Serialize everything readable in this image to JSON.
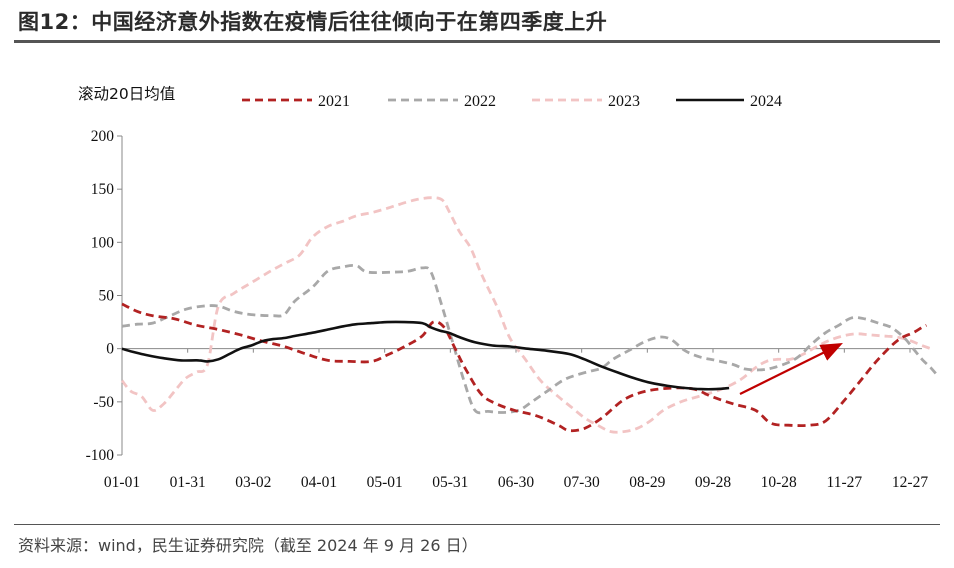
{
  "header": {
    "title": "图12：中国经济意外指数在疫情后往往倾向于在第四季度上升"
  },
  "footer": {
    "source": "资料来源：wind，民生证券研究院（截至 2024 年 9 月 26 日）"
  },
  "chart_data": {
    "type": "line",
    "unit_label": "滚动20日均值",
    "x_tick_labels": [
      "01-01",
      "01-31",
      "03-02",
      "04-01",
      "05-01",
      "05-31",
      "06-30",
      "07-30",
      "08-29",
      "09-28",
      "10-28",
      "11-27",
      "12-27"
    ],
    "x_domain_days": [
      1,
      366
    ],
    "ylim": [
      -100,
      200
    ],
    "y_ticks": [
      -100,
      -50,
      0,
      50,
      100,
      150,
      200
    ],
    "legend_position": "top",
    "annotation": "red arrow indicating Q4 rise",
    "series": [
      {
        "name": "2021",
        "color": "#b22222",
        "dash": "dashed",
        "points": [
          [
            1,
            42
          ],
          [
            8,
            35
          ],
          [
            15,
            31
          ],
          [
            25,
            28
          ],
          [
            35,
            22
          ],
          [
            45,
            18
          ],
          [
            55,
            13
          ],
          [
            65,
            7
          ],
          [
            75,
            2
          ],
          [
            85,
            -5
          ],
          [
            95,
            -11
          ],
          [
            105,
            -12
          ],
          [
            115,
            -12
          ],
          [
            122,
            -6
          ],
          [
            130,
            2
          ],
          [
            138,
            12
          ],
          [
            143,
            25
          ],
          [
            148,
            20
          ],
          [
            153,
            0
          ],
          [
            158,
            -20
          ],
          [
            165,
            -43
          ],
          [
            172,
            -52
          ],
          [
            180,
            -58
          ],
          [
            190,
            -63
          ],
          [
            200,
            -72
          ],
          [
            205,
            -77
          ],
          [
            212,
            -75
          ],
          [
            220,
            -65
          ],
          [
            230,
            -48
          ],
          [
            240,
            -40
          ],
          [
            252,
            -37
          ],
          [
            262,
            -38
          ],
          [
            270,
            -45
          ],
          [
            280,
            -52
          ],
          [
            290,
            -58
          ],
          [
            297,
            -70
          ],
          [
            305,
            -72
          ],
          [
            315,
            -72
          ],
          [
            322,
            -68
          ],
          [
            330,
            -50
          ],
          [
            338,
            -30
          ],
          [
            346,
            -10
          ],
          [
            355,
            8
          ],
          [
            362,
            15
          ],
          [
            366,
            20
          ],
          [
            368,
            22
          ]
        ]
      },
      {
        "name": "2022",
        "color": "#a8a8a8",
        "dash": "dashed",
        "points": [
          [
            1,
            21
          ],
          [
            8,
            23
          ],
          [
            15,
            24
          ],
          [
            22,
            30
          ],
          [
            30,
            37
          ],
          [
            38,
            40
          ],
          [
            45,
            40
          ],
          [
            52,
            35
          ],
          [
            60,
            32
          ],
          [
            70,
            31
          ],
          [
            75,
            32
          ],
          [
            80,
            45
          ],
          [
            88,
            58
          ],
          [
            95,
            73
          ],
          [
            102,
            77
          ],
          [
            108,
            78
          ],
          [
            113,
            72
          ],
          [
            125,
            72
          ],
          [
            132,
            73
          ],
          [
            138,
            76
          ],
          [
            142,
            72
          ],
          [
            147,
            40
          ],
          [
            152,
            5
          ],
          [
            157,
            -30
          ],
          [
            162,
            -58
          ],
          [
            168,
            -59
          ],
          [
            175,
            -60
          ],
          [
            182,
            -58
          ],
          [
            188,
            -50
          ],
          [
            195,
            -40
          ],
          [
            202,
            -30
          ],
          [
            208,
            -25
          ],
          [
            215,
            -21
          ],
          [
            220,
            -18
          ],
          [
            225,
            -10
          ],
          [
            232,
            -2
          ],
          [
            240,
            7
          ],
          [
            247,
            11
          ],
          [
            252,
            8
          ],
          [
            258,
            -2
          ],
          [
            265,
            -8
          ],
          [
            272,
            -11
          ],
          [
            280,
            -15
          ],
          [
            285,
            -19
          ],
          [
            292,
            -20
          ],
          [
            298,
            -18
          ],
          [
            305,
            -13
          ],
          [
            310,
            -7
          ],
          [
            316,
            5
          ],
          [
            322,
            15
          ],
          [
            328,
            22
          ],
          [
            334,
            29
          ],
          [
            340,
            28
          ],
          [
            346,
            24
          ],
          [
            352,
            20
          ],
          [
            358,
            10
          ],
          [
            362,
            0
          ],
          [
            366,
            -10
          ],
          [
            370,
            -18
          ],
          [
            373,
            -25
          ]
        ]
      },
      {
        "name": "2023",
        "color": "#f2c4c4",
        "dash": "dashed",
        "points": [
          [
            1,
            -30
          ],
          [
            5,
            -40
          ],
          [
            10,
            -45
          ],
          [
            15,
            -58
          ],
          [
            20,
            -52
          ],
          [
            25,
            -40
          ],
          [
            30,
            -28
          ],
          [
            35,
            -22
          ],
          [
            40,
            -15
          ],
          [
            45,
            40
          ],
          [
            52,
            52
          ],
          [
            60,
            62
          ],
          [
            68,
            72
          ],
          [
            75,
            80
          ],
          [
            82,
            88
          ],
          [
            88,
            105
          ],
          [
            95,
            115
          ],
          [
            102,
            120
          ],
          [
            108,
            125
          ],
          [
            115,
            128
          ],
          [
            122,
            132
          ],
          [
            128,
            136
          ],
          [
            135,
            140
          ],
          [
            142,
            142
          ],
          [
            147,
            140
          ],
          [
            150,
            130
          ],
          [
            155,
            110
          ],
          [
            160,
            95
          ],
          [
            165,
            70
          ],
          [
            172,
            40
          ],
          [
            178,
            10
          ],
          [
            185,
            -10
          ],
          [
            192,
            -30
          ],
          [
            200,
            -45
          ],
          [
            206,
            -55
          ],
          [
            212,
            -65
          ],
          [
            218,
            -72
          ],
          [
            224,
            -78
          ],
          [
            230,
            -78
          ],
          [
            236,
            -75
          ],
          [
            242,
            -68
          ],
          [
            248,
            -58
          ],
          [
            256,
            -50
          ],
          [
            264,
            -45
          ],
          [
            272,
            -40
          ],
          [
            278,
            -35
          ],
          [
            284,
            -28
          ],
          [
            290,
            -18
          ],
          [
            295,
            -12
          ],
          [
            300,
            -10
          ],
          [
            306,
            -10
          ],
          [
            312,
            -5
          ],
          [
            318,
            2
          ],
          [
            324,
            8
          ],
          [
            330,
            12
          ],
          [
            336,
            14
          ],
          [
            342,
            13
          ],
          [
            348,
            12
          ],
          [
            354,
            11
          ],
          [
            360,
            8
          ],
          [
            366,
            3
          ],
          [
            370,
            0
          ]
        ]
      },
      {
        "name": "2024",
        "color": "#111111",
        "dash": "solid",
        "points": [
          [
            1,
            0
          ],
          [
            6,
            -3
          ],
          [
            12,
            -6
          ],
          [
            20,
            -9
          ],
          [
            28,
            -11
          ],
          [
            36,
            -11
          ],
          [
            40,
            -12
          ],
          [
            45,
            -10
          ],
          [
            50,
            -5
          ],
          [
            55,
            0
          ],
          [
            60,
            3
          ],
          [
            65,
            7
          ],
          [
            70,
            9
          ],
          [
            75,
            10
          ],
          [
            80,
            12
          ],
          [
            88,
            15
          ],
          [
            95,
            18
          ],
          [
            102,
            21
          ],
          [
            108,
            23
          ],
          [
            115,
            24
          ],
          [
            122,
            25
          ],
          [
            130,
            25
          ],
          [
            138,
            24
          ],
          [
            142,
            20
          ],
          [
            146,
            17
          ],
          [
            150,
            15
          ],
          [
            156,
            10
          ],
          [
            162,
            6
          ],
          [
            170,
            3
          ],
          [
            178,
            2
          ],
          [
            186,
            0
          ],
          [
            195,
            -2
          ],
          [
            205,
            -5
          ],
          [
            212,
            -10
          ],
          [
            220,
            -17
          ],
          [
            228,
            -23
          ],
          [
            235,
            -28
          ],
          [
            242,
            -32
          ],
          [
            250,
            -35
          ],
          [
            258,
            -37
          ],
          [
            265,
            -38
          ],
          [
            272,
            -38
          ],
          [
            278,
            -37
          ]
        ]
      }
    ]
  }
}
